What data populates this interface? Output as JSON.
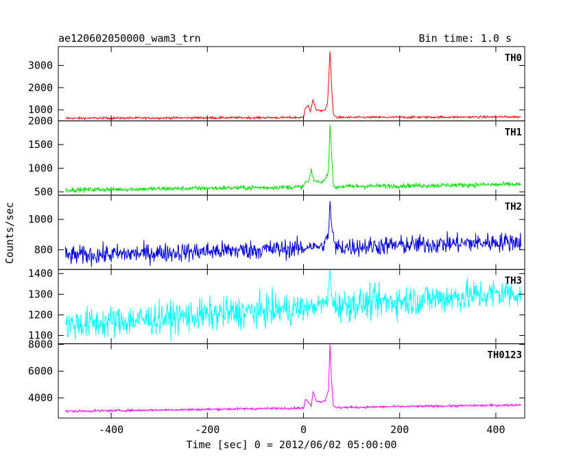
{
  "header": {
    "title": "ae120602050000_wam3_trn",
    "bin_time": "Bin time: 1.0 s"
  },
  "chart_data": {
    "type": "line",
    "xlabel": "Time [sec] 0 = 2012/06/02 05:00:00",
    "ylabel": "Counts/sec",
    "xlim": [
      -510,
      460
    ],
    "xticks": [
      -400,
      -200,
      0,
      200,
      400
    ],
    "x_start": -495,
    "x_end": 452,
    "panels": [
      {
        "name": "TH0",
        "color": "#ff0000",
        "ylim": [
          500,
          3850
        ],
        "yticks": [
          1000,
          2000,
          3000
        ],
        "baseline_start": 620,
        "baseline_end": 680,
        "noise": 35,
        "burst": [
          [
            0,
            620
          ],
          [
            4,
            1100
          ],
          [
            10,
            1200
          ],
          [
            14,
            900
          ],
          [
            20,
            1450
          ],
          [
            26,
            1000
          ],
          [
            35,
            950
          ],
          [
            45,
            1000
          ],
          [
            50,
            1300
          ],
          [
            55,
            3650
          ],
          [
            58,
            2200
          ],
          [
            62,
            800
          ],
          [
            70,
            640
          ]
        ]
      },
      {
        "name": "TH1",
        "color": "#00e000",
        "ylim": [
          430,
          2000
        ],
        "yticks": [
          500,
          1000,
          1500,
          2000
        ],
        "baseline_start": 540,
        "baseline_end": 660,
        "noise": 35,
        "burst": [
          [
            0,
            620
          ],
          [
            4,
            720
          ],
          [
            10,
            700
          ],
          [
            16,
            950
          ],
          [
            22,
            740
          ],
          [
            35,
            700
          ],
          [
            45,
            760
          ],
          [
            52,
            950
          ],
          [
            55,
            1950
          ],
          [
            58,
            1400
          ],
          [
            62,
            620
          ],
          [
            70,
            580
          ]
        ]
      },
      {
        "name": "TH2",
        "color": "#0000e0",
        "ylim": [
          670,
          1160
        ],
        "yticks": [
          800,
          1000
        ],
        "baseline_start": 760,
        "baseline_end": 855,
        "noise": 45,
        "burst": [
          [
            0,
            800
          ],
          [
            10,
            830
          ],
          [
            20,
            820
          ],
          [
            40,
            820
          ],
          [
            52,
            900
          ],
          [
            55,
            1130
          ],
          [
            58,
            960
          ],
          [
            65,
            830
          ]
        ]
      },
      {
        "name": "TH3",
        "color": "#00ffff",
        "ylim": [
          1060,
          1420
        ],
        "yticks": [
          1100,
          1200,
          1300,
          1400
        ],
        "baseline_start": 1150,
        "baseline_end": 1310,
        "noise": 55,
        "burst": [
          [
            0,
            1230
          ],
          [
            20,
            1240
          ],
          [
            50,
            1260
          ],
          [
            55,
            1420
          ],
          [
            58,
            1300
          ],
          [
            65,
            1240
          ]
        ]
      },
      {
        "name": "TH0123",
        "color": "#ff00ff",
        "ylim": [
          2500,
          8050
        ],
        "yticks": [
          4000,
          6000,
          8000
        ],
        "baseline_start": 3000,
        "baseline_end": 3480,
        "noise": 60,
        "burst": [
          [
            0,
            3150
          ],
          [
            4,
            3900
          ],
          [
            10,
            3700
          ],
          [
            16,
            3400
          ],
          [
            20,
            4500
          ],
          [
            26,
            3800
          ],
          [
            35,
            3700
          ],
          [
            45,
            3800
          ],
          [
            52,
            4600
          ],
          [
            55,
            8050
          ],
          [
            58,
            5500
          ],
          [
            62,
            3400
          ],
          [
            70,
            3250
          ]
        ]
      }
    ]
  }
}
